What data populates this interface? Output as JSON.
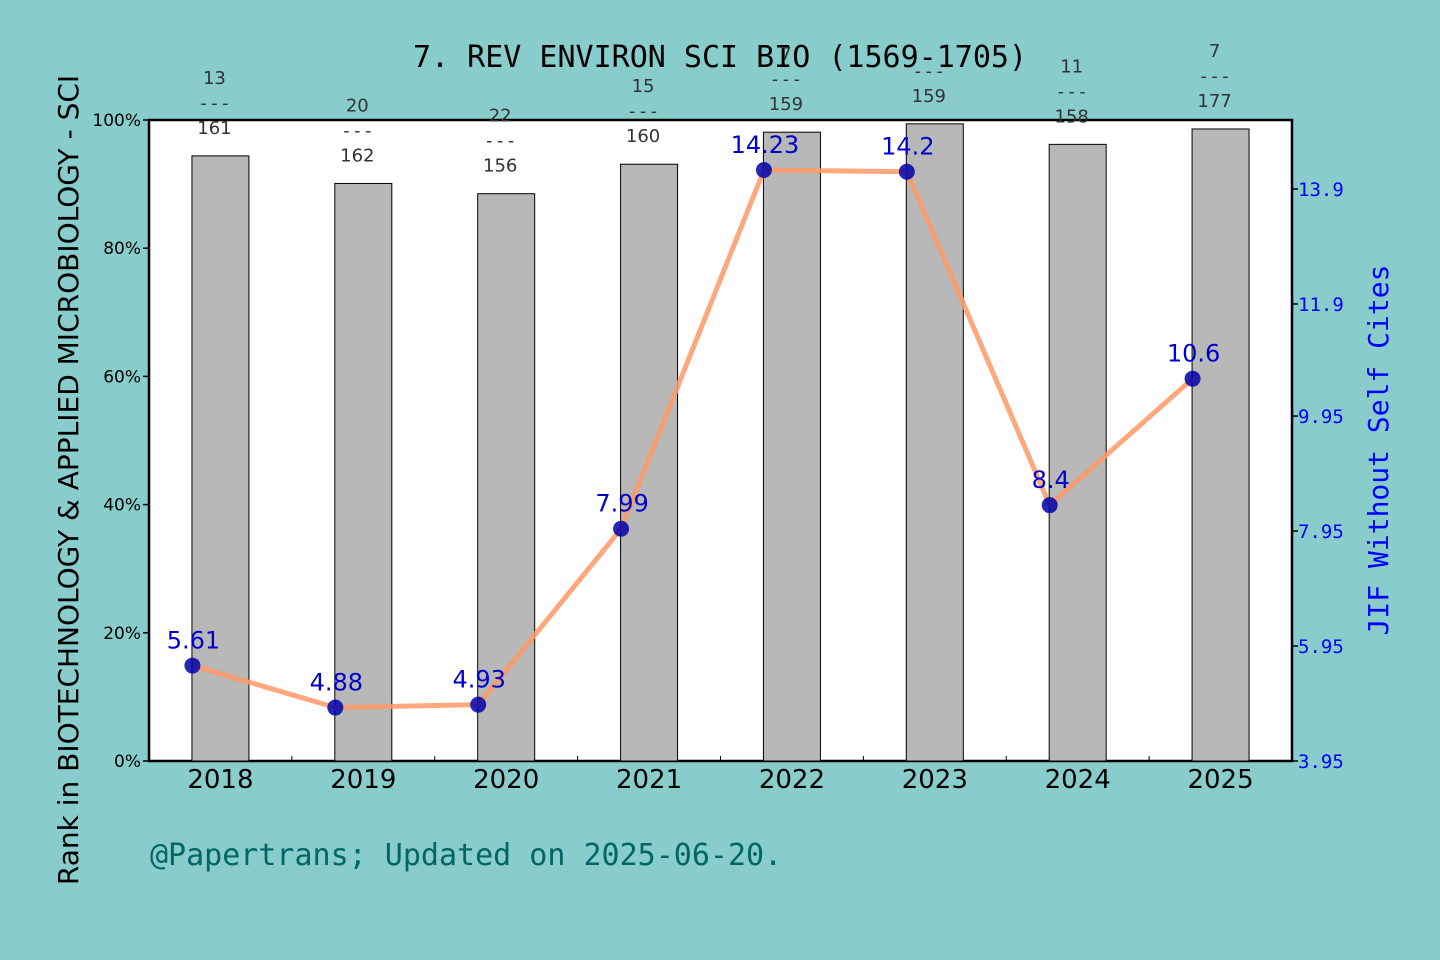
{
  "colors": {
    "background": "#88cccc",
    "plot_bg": "#ffffff",
    "bar_fill": "#b8b8b8",
    "line": "#ff9966",
    "marker": "#0000aa",
    "right_axis": "#0000ff",
    "footer_text": "#006666",
    "jif_label_color": "#0000cc",
    "jif_label_overlay": "#7777bb"
  },
  "chart_data": {
    "type": "bar",
    "title": "7. REV ENVIRON SCI BIO (1569-1705)",
    "ylabel_left": "Rank in BIOTECHNOLOGY & APPLIED MICROBIOLOGY - SCI",
    "ylabel_right": "JIF Without Self Cites",
    "categories": [
      "2018",
      "2019",
      "2020",
      "2021",
      "2022",
      "2023",
      "2024",
      "2025"
    ],
    "y_left_ticks": [
      "0%",
      "20%",
      "40%",
      "60%",
      "80%",
      "100%"
    ],
    "y_left_range": [
      0,
      100
    ],
    "y_right_ticks": [
      "3.95",
      "5.95",
      "7.95",
      "9.95",
      "11.9",
      "13.9"
    ],
    "y_right_range": [
      3.95,
      15.1
    ],
    "series": [
      {
        "kind": "bar",
        "values": [
          94.4,
          90.1,
          88.5,
          93.1,
          98.1,
          99.4,
          96.2,
          98.6
        ],
        "rank_numerators": [
          "13",
          "20",
          "22",
          "15",
          "7",
          "",
          "11",
          "7"
        ],
        "rank_denominators": [
          "161",
          "162",
          "156",
          "160",
          "159",
          "159",
          "158",
          "177"
        ]
      },
      {
        "kind": "line",
        "values": [
          5.61,
          4.88,
          4.93,
          7.99,
          14.23,
          14.2,
          8.4,
          10.6
        ],
        "labels": [
          "5.61",
          "4.88",
          "4.93",
          "7.99",
          "14.23",
          "14.2",
          "8.4",
          "10.6"
        ]
      }
    ],
    "grid": false
  },
  "footer": {
    "text": "@Papertrans; Updated on 2025-06-20."
  }
}
